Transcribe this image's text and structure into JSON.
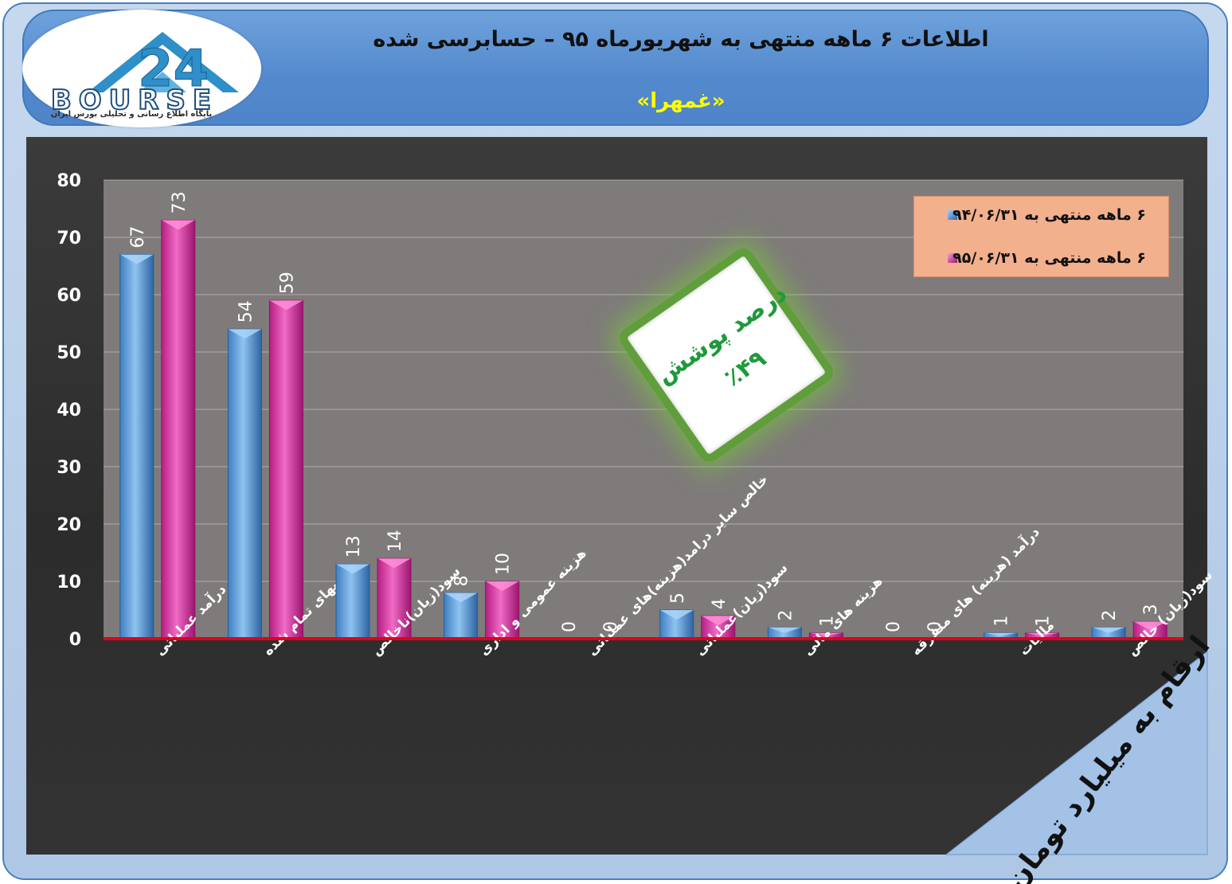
{
  "header": {
    "title_line1": "اطلاعات ۶  ماهه منتهی به شهریورماه ۹۵ – حسابرسی شده",
    "title_line2": "«غمهرا»"
  },
  "logo": {
    "word": "BOURSE",
    "subtitle": "پایگاه اطلاع رسانی و تحلیلی بورس ایران"
  },
  "badge": {
    "line1": "درصد پوشش",
    "line2": "٪۴۹"
  },
  "units_note": "ارقام به میلیارد تومان",
  "colors": {
    "series1": "#5b9bd5",
    "series2": "#d63aa4",
    "zero_line": "#e0001b",
    "grid": "#d9d9d9",
    "tick_text": "#ffffff",
    "plot_area": "#7f7b7a",
    "legend_bg": "#f3b08d",
    "badge_text": "#1e9a3c"
  },
  "chart_data": {
    "type": "bar",
    "categories": [
      "درآمد عملیاتی",
      "بهای تمام شده",
      "سود(زیان)ناخالص",
      "هزینه عمومی و اداری",
      "خالص سایر درامد(هزینه)های عملیاتی",
      "سود(زیان)عملیاتی",
      "هزینه های مالی",
      "درآمد (هزینه) های متفرقه",
      "مالیات",
      "سود(زیان) خالص"
    ],
    "series": [
      {
        "name": "۶ ماهه منتهی به ۹۴/۰۶/۳۱",
        "values": [
          67,
          54,
          13,
          8,
          0,
          5,
          2,
          0,
          1,
          2
        ]
      },
      {
        "name": "۶ ماهه منتهی به ۹۵/۰۶/۳۱",
        "values": [
          73,
          59,
          14,
          10,
          0,
          4,
          1,
          0,
          1,
          3
        ]
      }
    ],
    "ylim": [
      0,
      80
    ],
    "yticks": [
      "0",
      "10",
      "20",
      "30",
      "40",
      "50",
      "60",
      "70",
      "80"
    ],
    "grid": true,
    "legend_position": "top-right",
    "xlabel": "",
    "ylabel": ""
  }
}
